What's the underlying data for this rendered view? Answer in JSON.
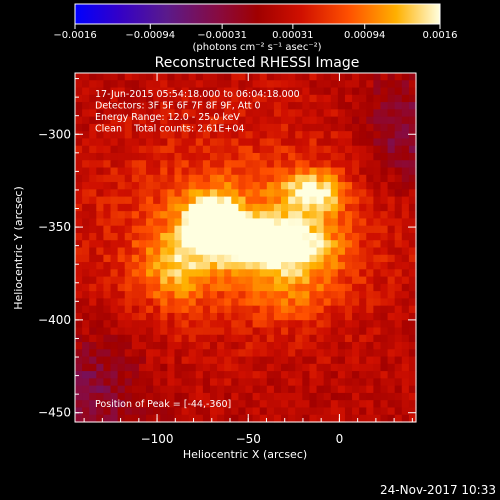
{
  "chart_data": {
    "type": "heatmap",
    "title": "Reconstructed RHESSI Image",
    "xlabel": "Heliocentric X (arcsec)",
    "ylabel": "Heliocentric Y (arcsec)",
    "xlim": [
      -145,
      42
    ],
    "ylim": [
      -455,
      -267
    ],
    "x_ticks": [
      -100,
      -50,
      0
    ],
    "x_tick_labels": [
      "−100",
      "−50",
      "0"
    ],
    "y_ticks": [
      -300,
      -350,
      -400,
      -450
    ],
    "y_tick_labels": [
      "−300",
      "−350",
      "−400",
      "−450"
    ],
    "colorbar": {
      "min": -0.0016,
      "max": 0.0016,
      "ticks": [
        -0.0016,
        -0.00094,
        -0.00031,
        0.00031,
        0.00094,
        0.0016
      ],
      "tick_labels": [
        "−0.0016",
        "−0.00094",
        "−0.00031",
        "0.00031",
        "0.00094",
        "0.0016"
      ],
      "unit_label": "(photons cm⁻² s⁻¹ asec⁻²)"
    },
    "annotations": [
      "17-Jun-2015 05:54:18.000 to 06:04:18.000",
      "Detectors: 3F 5F 6F 7F 8F 9F, Att 0",
      "Energy Range: 12.0 - 25.0 keV",
      "Clean    Total counts: 2.61E+04"
    ],
    "peak_label": "Position of Peak = [-44,-360]",
    "peak": [
      -44,
      -360
    ],
    "sources": [
      {
        "x": -40,
        "y": -358,
        "sx": 22,
        "sy": 9,
        "amp": 0.0016
      },
      {
        "x": -70,
        "y": -345,
        "sx": 11,
        "sy": 10,
        "amp": 0.00135
      },
      {
        "x": -15,
        "y": -332,
        "sx": 12,
        "sy": 8,
        "amp": 0.00115
      },
      {
        "x": -55,
        "y": -350,
        "sx": 55,
        "sy": 38,
        "amp": 0.00065
      },
      {
        "x": -90,
        "y": -372,
        "sx": 14,
        "sy": 14,
        "amp": 0.0007
      },
      {
        "x": -25,
        "y": -380,
        "sx": 20,
        "sy": 14,
        "amp": 0.0005
      }
    ],
    "grid": false
  },
  "footer_date": "24-Nov-2017 10:33",
  "colors": {
    "background": "#000000",
    "foreground": "#ffffff"
  }
}
